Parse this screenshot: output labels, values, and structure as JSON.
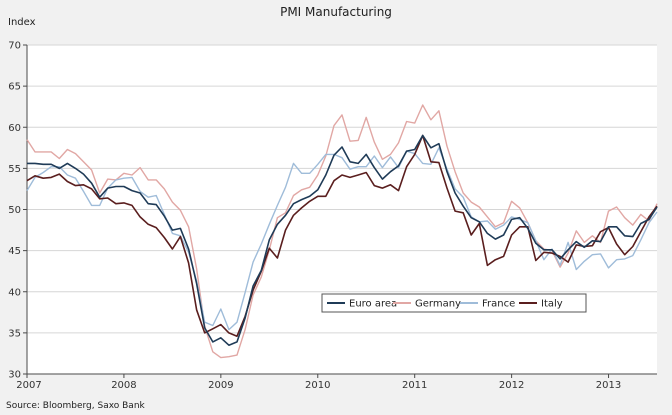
{
  "chart_data": {
    "type": "line",
    "title": "PMI Manufacturing",
    "ylabel": "Index",
    "xlabel": "",
    "ylim": [
      30,
      70
    ],
    "yticks": [
      30,
      35,
      40,
      45,
      50,
      55,
      60,
      65,
      70
    ],
    "xlim": [
      2007.0,
      2013.5
    ],
    "xticks": [
      2007,
      2008,
      2009,
      2010,
      2011,
      2012,
      2013
    ],
    "xtick_labels": [
      "2007",
      "2008",
      "2009",
      "2010",
      "2011",
      "2012",
      "2013"
    ],
    "source": "Source: Bloomberg, Saxo Bank",
    "legend_position": "center-bottom",
    "x": [
      2007.0,
      2007.083,
      2007.167,
      2007.25,
      2007.333,
      2007.417,
      2007.5,
      2007.583,
      2007.667,
      2007.75,
      2007.833,
      2007.917,
      2008.0,
      2008.083,
      2008.167,
      2008.25,
      2008.333,
      2008.417,
      2008.5,
      2008.583,
      2008.667,
      2008.75,
      2008.833,
      2008.917,
      2009.0,
      2009.083,
      2009.167,
      2009.25,
      2009.333,
      2009.417,
      2009.5,
      2009.583,
      2009.667,
      2009.75,
      2009.833,
      2009.917,
      2010.0,
      2010.083,
      2010.167,
      2010.25,
      2010.333,
      2010.417,
      2010.5,
      2010.583,
      2010.667,
      2010.75,
      2010.833,
      2010.917,
      2011.0,
      2011.083,
      2011.167,
      2011.25,
      2011.333,
      2011.417,
      2011.5,
      2011.583,
      2011.667,
      2011.75,
      2011.833,
      2011.917,
      2012.0,
      2012.083,
      2012.167,
      2012.25,
      2012.333,
      2012.417,
      2012.5,
      2012.583,
      2012.667,
      2012.75,
      2012.833,
      2012.917,
      2013.0,
      2013.083,
      2013.167,
      2013.25,
      2013.333,
      2013.417,
      2013.5
    ],
    "series": [
      {
        "name": "Euro area",
        "color": "#1f3b57",
        "values": [
          55.6,
          55.6,
          55.5,
          55.5,
          55.0,
          55.6,
          55.0,
          54.3,
          53.2,
          51.5,
          52.6,
          52.8,
          52.8,
          52.3,
          52.0,
          50.7,
          50.6,
          49.2,
          47.5,
          47.7,
          45.2,
          41.0,
          35.6,
          33.9,
          34.4,
          33.5,
          33.9,
          36.8,
          40.7,
          42.6,
          46.3,
          48.2,
          49.3,
          50.7,
          51.2,
          51.6,
          52.4,
          54.2,
          56.6,
          57.6,
          55.8,
          55.6,
          56.7,
          55.1,
          53.7,
          54.6,
          55.3,
          57.1,
          57.3,
          59.0,
          57.5,
          58.0,
          54.6,
          52.0,
          50.4,
          49.0,
          48.5,
          47.1,
          46.4,
          46.9,
          48.8,
          49.0,
          47.7,
          45.9,
          45.1,
          45.1,
          44.0,
          45.1,
          46.1,
          45.4,
          46.2,
          46.1,
          47.9,
          47.9,
          46.8,
          46.7,
          48.3,
          48.8,
          50.3
        ]
      },
      {
        "name": "Germany",
        "color": "#e1a7a4",
        "values": [
          58.5,
          57.0,
          57.0,
          57.0,
          56.2,
          57.3,
          56.8,
          55.8,
          54.8,
          52.0,
          53.7,
          53.6,
          54.4,
          54.2,
          55.1,
          53.6,
          53.6,
          52.5,
          50.9,
          49.9,
          47.9,
          42.8,
          35.8,
          32.7,
          32.0,
          32.1,
          32.3,
          35.4,
          39.6,
          41.8,
          45.1,
          49.0,
          49.6,
          51.7,
          52.4,
          52.7,
          54.2,
          56.5,
          60.2,
          61.5,
          58.3,
          58.4,
          61.2,
          58.2,
          56.1,
          56.7,
          58.1,
          60.7,
          60.5,
          62.7,
          60.9,
          62.0,
          57.7,
          54.6,
          52.0,
          50.9,
          50.3,
          49.1,
          47.9,
          48.4,
          51.0,
          50.2,
          48.4,
          46.2,
          45.2,
          45.0,
          43.0,
          44.7,
          47.4,
          46.0,
          46.8,
          46.0,
          49.8,
          50.3,
          49.0,
          48.1,
          49.4,
          48.6,
          50.7
        ]
      },
      {
        "name": "France",
        "color": "#9fbcd9",
        "values": [
          52.3,
          53.9,
          54.5,
          55.2,
          55.2,
          54.2,
          53.8,
          52.2,
          50.5,
          50.5,
          52.6,
          53.6,
          53.8,
          53.9,
          52.2,
          51.5,
          51.7,
          49.4,
          47.1,
          46.8,
          44.8,
          41.3,
          36.3,
          35.9,
          37.9,
          35.4,
          36.3,
          39.9,
          43.6,
          45.8,
          48.2,
          50.5,
          52.7,
          55.6,
          54.4,
          54.4,
          55.5,
          56.7,
          56.7,
          56.3,
          54.9,
          55.2,
          55.2,
          56.5,
          55.1,
          56.4,
          55.1,
          57.1,
          56.8,
          55.6,
          55.5,
          57.5,
          54.9,
          52.5,
          51.5,
          49.1,
          48.5,
          48.6,
          47.6,
          48.1,
          49.1,
          48.8,
          48.4,
          46.2,
          43.9,
          45.2,
          43.2,
          46.0,
          42.7,
          43.7,
          44.5,
          44.6,
          42.9,
          43.9,
          44.0,
          44.4,
          46.3,
          48.4,
          49.7
        ]
      },
      {
        "name": "Italy",
        "color": "#5a1e1e",
        "values": [
          53.5,
          54.1,
          53.8,
          53.9,
          54.3,
          53.4,
          52.9,
          53.0,
          52.5,
          51.3,
          51.4,
          50.7,
          50.8,
          50.5,
          49.1,
          48.2,
          47.8,
          46.6,
          45.2,
          46.7,
          43.5,
          37.8,
          35.0,
          35.5,
          36.0,
          35.0,
          34.6,
          37.0,
          40.2,
          42.5,
          45.3,
          44.1,
          47.5,
          49.3,
          50.2,
          51.0,
          51.6,
          51.6,
          53.5,
          54.2,
          53.9,
          54.2,
          54.5,
          52.9,
          52.6,
          53.0,
          52.3,
          55.2,
          56.7,
          59.0,
          55.8,
          55.7,
          52.6,
          49.8,
          49.6,
          46.9,
          48.3,
          43.2,
          43.9,
          44.3,
          46.9,
          47.9,
          47.9,
          43.8,
          44.8,
          44.7,
          44.3,
          43.6,
          45.7,
          45.5,
          45.6,
          47.3,
          47.8,
          45.8,
          44.5,
          45.5,
          47.3,
          49.1,
          50.4
        ]
      }
    ]
  },
  "colors": {
    "background": "#f1f1f1",
    "plot_background": "#ffffff",
    "grid": "#d6d6d6",
    "axis": "#4a4a4a"
  }
}
